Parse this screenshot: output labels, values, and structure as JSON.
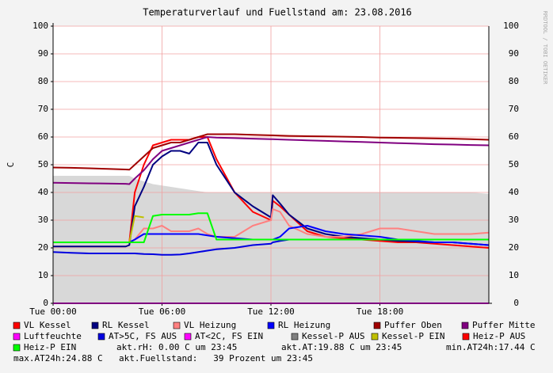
{
  "chart_data": {
    "type": "line",
    "title": "Temperaturverlauf und Fuellstand am: 23.08.2016",
    "y_label": "C",
    "watermark": "RRDTOOL / TOBI OETIKER",
    "grid": true,
    "xlim": [
      0,
      24
    ],
    "xticks": [
      {
        "value": 0,
        "label": "Tue 00:00"
      },
      {
        "value": 6,
        "label": "Tue 06:00"
      },
      {
        "value": 12,
        "label": "Tue 12:00"
      },
      {
        "value": 18,
        "label": "Tue 18:00"
      }
    ],
    "ylim": [
      0,
      100
    ],
    "yticks": [
      0,
      10,
      20,
      30,
      40,
      50,
      60,
      70,
      80,
      90,
      100
    ],
    "x": [
      0,
      1,
      2,
      3,
      4,
      4.2,
      4.5,
      5,
      5.5,
      6,
      6.5,
      7,
      7.5,
      8,
      8.5,
      9,
      10,
      11,
      12,
      12.1,
      12.5,
      13,
      14,
      15,
      16,
      17,
      18,
      19,
      20,
      21,
      22,
      23,
      24
    ],
    "series": [
      {
        "name": "VL Kessel",
        "color": "#ff0000",
        "values": [
          22,
          22,
          22,
          22,
          22,
          22,
          40,
          50,
          57,
          58,
          59,
          59,
          59,
          60,
          60,
          52,
          40,
          33,
          30,
          37,
          35,
          32,
          26,
          24,
          23.5,
          23,
          22.5,
          22,
          22,
          21.5,
          21,
          20.5,
          20
        ]
      },
      {
        "name": "RL Kessel",
        "color": "#000080",
        "values": [
          20.5,
          20.5,
          20.5,
          20.5,
          20.5,
          21,
          35,
          42,
          50,
          53,
          55,
          55,
          54,
          58,
          58,
          50,
          40,
          35,
          31,
          39,
          36,
          32,
          27,
          25,
          24,
          23.5,
          23,
          22.5,
          22.3,
          22,
          22,
          21.5,
          21
        ]
      },
      {
        "name": "VL Heizung",
        "color": "#ff8080",
        "values": [
          22,
          22,
          22,
          22,
          22,
          22,
          23,
          27,
          27,
          28,
          26,
          26,
          26,
          27,
          25,
          24,
          24,
          28,
          30,
          34,
          33,
          28,
          25,
          24,
          24,
          25,
          27,
          27,
          26,
          25,
          25,
          25,
          25.5
        ]
      },
      {
        "name": "RL Heizung",
        "color": "#0000ff",
        "values": [
          22,
          22,
          22,
          22,
          22,
          22,
          23,
          25,
          25,
          25,
          25,
          25,
          25,
          25,
          24.5,
          24,
          23.5,
          23,
          23,
          23,
          24,
          27,
          28,
          26,
          25,
          24.5,
          24,
          23,
          22.5,
          22,
          22,
          21.5,
          21
        ]
      },
      {
        "name": "Puffer Oben",
        "color": "#a00000",
        "values": [
          49,
          48.9,
          48.7,
          48.5,
          48.3,
          48.2,
          50,
          53,
          56,
          57,
          58,
          58,
          59,
          60,
          61,
          61,
          61,
          60.8,
          60.6,
          60.6,
          60.5,
          60.4,
          60.3,
          60.2,
          60.1,
          60,
          59.8,
          59.7,
          59.6,
          59.5,
          59.4,
          59.2,
          59
        ]
      },
      {
        "name": "Puffer Mitte",
        "color": "#800080",
        "values": [
          43.5,
          43.4,
          43.3,
          43.2,
          43.1,
          43,
          45,
          48,
          52,
          55,
          56,
          57,
          58,
          59,
          60,
          59.8,
          59.6,
          59.4,
          59.2,
          59.2,
          59.1,
          59,
          58.8,
          58.6,
          58.4,
          58.2,
          58,
          57.8,
          57.6,
          57.4,
          57.3,
          57.1,
          57
        ]
      },
      {
        "name": "Luftfeuchte",
        "color": "#ff00ff",
        "values": [
          0,
          0,
          0,
          0,
          0,
          0,
          0,
          0,
          0,
          0,
          0,
          0,
          0,
          0,
          0,
          0,
          0,
          0,
          0,
          0,
          0,
          0,
          0,
          0,
          0,
          0,
          0,
          0,
          0,
          0,
          0,
          0,
          0
        ]
      },
      {
        "name": "AT>5C, FS AUS",
        "color": "#0000e0",
        "values": [
          18.5,
          18.2,
          18,
          18,
          18,
          18,
          18,
          17.8,
          17.7,
          17.5,
          17.5,
          17.6,
          18,
          18.5,
          19,
          19.5,
          20,
          21,
          21.5,
          22,
          22.5,
          23,
          23,
          23,
          23,
          23,
          23,
          23,
          23,
          23,
          23,
          23,
          23
        ]
      },
      {
        "name": "AT<2C, FS EIN",
        "color": "#ff00ff",
        "values": [
          null,
          null,
          null,
          null,
          null,
          null,
          null,
          null,
          null,
          null,
          null,
          null,
          null,
          null,
          null,
          null,
          null,
          null,
          null,
          null,
          null,
          null,
          null,
          null,
          null,
          null,
          null,
          null,
          null,
          null,
          null,
          null,
          null
        ]
      },
      {
        "name": "Kessel-P AUS",
        "color": "#808080",
        "fill": "#d8d8d8",
        "values": [
          46,
          46,
          46,
          46,
          46,
          46,
          45,
          44,
          43,
          42.5,
          42,
          41.5,
          41,
          40.5,
          40,
          40,
          40,
          40,
          40,
          40,
          40,
          40,
          40,
          40,
          40,
          40,
          40,
          40,
          40,
          40,
          40,
          40,
          39.5
        ]
      },
      {
        "name": "Kessel-P EIN",
        "color": "#c0c000",
        "values": [
          null,
          null,
          null,
          null,
          null,
          22,
          31.5,
          31,
          null,
          null,
          null,
          null,
          null,
          null,
          null,
          null,
          null,
          null,
          null,
          null,
          null,
          null,
          null,
          null,
          null,
          null,
          null,
          null,
          null,
          null,
          null,
          null,
          null
        ]
      },
      {
        "name": "Heiz-P AUS",
        "color": "#ff0000",
        "values": [
          null,
          null,
          null,
          null,
          null,
          null,
          null,
          null,
          null,
          null,
          null,
          null,
          null,
          null,
          null,
          null,
          null,
          null,
          null,
          null,
          null,
          null,
          null,
          null,
          null,
          null,
          null,
          null,
          null,
          null,
          null,
          null,
          null
        ]
      },
      {
        "name": "Heiz-P EIN",
        "color": "#00ff00",
        "values": [
          22,
          22,
          22,
          22,
          22,
          22,
          22,
          22,
          31.5,
          32,
          32,
          32,
          32,
          32.5,
          32.5,
          23,
          23,
          23,
          23,
          23,
          23,
          23,
          23,
          23,
          23,
          23,
          23,
          23,
          23,
          23,
          23,
          23,
          23
        ]
      }
    ],
    "comments": [
      "akt.rH: 0.00 C um 23:45",
      "akt.AT:19.88 C um 23:45",
      "min.AT24h:17.44 C",
      "max.AT24h:24.88 C",
      "akt.Fuellstand:   39 Prozent um 23:45"
    ]
  }
}
